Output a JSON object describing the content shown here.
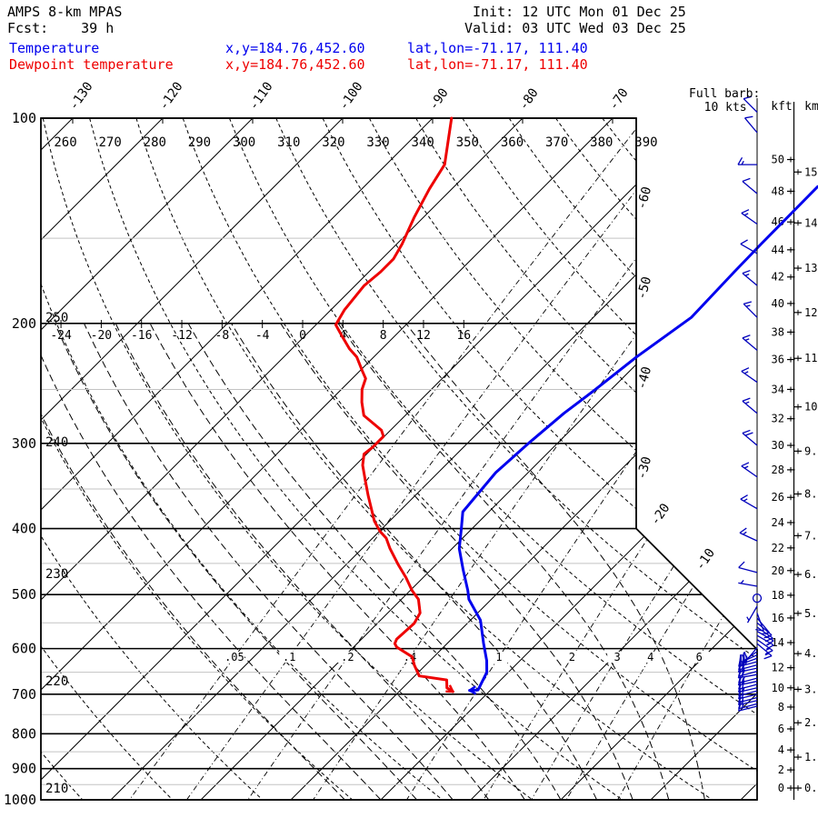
{
  "header": {
    "model": "AMPS 8-km MPAS",
    "fcst_label": "Fcst:",
    "fcst_value": "39 h",
    "init_label": "Init:",
    "init_value": "12 UTC Mon 01 Dec 25",
    "valid_label": "Valid:",
    "valid_value": "03 UTC Wed 03 Dec 25"
  },
  "legend": {
    "temperature": {
      "label": "Temperature",
      "xy": "x,y=184.76,452.60",
      "latlon": "lat,lon=-71.17, 111.40"
    },
    "dewpoint": {
      "label": "Dewpoint temperature",
      "xy": "x,y=184.76,452.60",
      "latlon": "lat,lon=-71.17, 111.40"
    }
  },
  "barb_legend": {
    "line1": "Full barb:",
    "line2": "10 kts"
  },
  "colors": {
    "temperature": "#0000ee",
    "dewpoint": "#ee0000",
    "barbs": "#0000bb",
    "minor_line": "#c3c3c3",
    "major_line": "#000000"
  },
  "axes": {
    "pressure_unit": "hPa",
    "pressure_major_ticks": [
      100,
      200,
      300,
      400,
      500,
      600,
      700,
      800,
      900,
      1000
    ],
    "pressure_minor_ticks": [
      150,
      250,
      350,
      450,
      550,
      650,
      750,
      850,
      950
    ],
    "top_isotherm_labels": [
      -130,
      -120,
      -110,
      -100,
      -90,
      -80,
      -70
    ],
    "edge_isotherm_labels": [
      -60,
      -50,
      -40,
      -30,
      -20,
      -10
    ],
    "dry_adiabat_values": [
      210,
      220,
      230,
      240,
      250,
      260,
      270,
      280,
      290,
      300,
      310,
      320,
      330,
      340,
      350,
      360,
      370,
      380,
      390
    ],
    "dry_adiabat_top_labels": [
      260,
      270,
      280,
      290,
      300,
      310,
      320,
      330,
      340,
      350,
      360,
      370,
      380,
      390
    ],
    "dry_adiabat_left_labels": [
      250,
      240,
      230,
      220,
      210
    ],
    "moist_adiabat_labels": [
      -24,
      -20,
      -16,
      -12,
      -8,
      -4,
      0,
      4,
      8,
      12,
      16
    ],
    "mixing_ratio_values": [
      0.05,
      0.1,
      0.2,
      0.4,
      1,
      2,
      3,
      4,
      6
    ],
    "mixing_ratio_labels": [
      ".05",
      ".1",
      ".2",
      ".4",
      "1",
      "2",
      "3",
      "4",
      "6"
    ],
    "height_kft_label": "kft",
    "height_km_label": "km",
    "kft_max": 50,
    "kft_label_step": 2,
    "km_max": 15,
    "kft_pressure_anchors": [
      [
        0,
        961
      ],
      [
        2,
        904
      ],
      [
        4,
        845
      ],
      [
        6,
        787
      ],
      [
        8,
        731
      ],
      [
        10,
        685
      ],
      [
        12,
        640
      ],
      [
        14,
        588
      ],
      [
        16,
        541
      ],
      [
        18,
        501
      ],
      [
        20,
        461
      ],
      [
        22,
        427
      ],
      [
        24,
        392
      ],
      [
        26,
        360
      ],
      [
        28,
        328
      ],
      [
        30,
        302
      ],
      [
        32,
        276
      ],
      [
        34,
        250
      ],
      [
        36,
        226
      ],
      [
        38,
        206
      ],
      [
        40,
        187
      ],
      [
        42,
        171
      ],
      [
        44,
        156
      ],
      [
        46,
        142
      ],
      [
        48,
        128
      ],
      [
        50,
        115
      ]
    ]
  },
  "chart_data": {
    "type": "skewt_log_p_sounding",
    "title": "AMPS 8-km MPAS skew-T sounding",
    "pressure_unit": "hPa",
    "temperature_unit": "degC",
    "wind_unit": "kts",
    "temperature_series": [
      [
        126,
        -39.6
      ],
      [
        153,
        -39.5
      ],
      [
        168,
        -39.4
      ],
      [
        196,
        -39.1
      ],
      [
        224,
        -40.8
      ],
      [
        251,
        -41.8
      ],
      [
        271,
        -42.6
      ],
      [
        299,
        -43.2
      ],
      [
        331,
        -43.6
      ],
      [
        378,
        -42.9
      ],
      [
        400,
        -41.2
      ],
      [
        428,
        -39.2
      ],
      [
        460,
        -36.4
      ],
      [
        493,
        -33.6
      ],
      [
        508,
        -32.5
      ],
      [
        545,
        -28.9
      ],
      [
        589,
        -26.0
      ],
      [
        625,
        -23.7
      ],
      [
        650,
        -22.4
      ],
      [
        690,
        -21.4
      ],
      [
        691,
        -22.3
      ]
    ],
    "dewpoint_series": [
      [
        100,
        -87.9
      ],
      [
        117,
        -83.5
      ],
      [
        127,
        -82.5
      ],
      [
        140,
        -81.0
      ],
      [
        153,
        -79.4
      ],
      [
        161,
        -78.7
      ],
      [
        168,
        -78.7
      ],
      [
        176,
        -79.0
      ],
      [
        191,
        -78.5
      ],
      [
        201,
        -77.8
      ],
      [
        209,
        -75.8
      ],
      [
        218,
        -73.6
      ],
      [
        224,
        -71.9
      ],
      [
        235,
        -69.7
      ],
      [
        241,
        -68.5
      ],
      [
        250,
        -67.7
      ],
      [
        261,
        -66.3
      ],
      [
        273,
        -64.6
      ],
      [
        287,
        -61.0
      ],
      [
        293,
        -60.1
      ],
      [
        304,
        -60.1
      ],
      [
        311,
        -60.3
      ],
      [
        323,
        -59.2
      ],
      [
        341,
        -57.1
      ],
      [
        358,
        -55.2
      ],
      [
        390,
        -51.7
      ],
      [
        404,
        -49.9
      ],
      [
        413,
        -48.5
      ],
      [
        428,
        -46.9
      ],
      [
        451,
        -44.3
      ],
      [
        472,
        -41.9
      ],
      [
        493,
        -39.8
      ],
      [
        508,
        -38.1
      ],
      [
        532,
        -36.4
      ],
      [
        551,
        -35.9
      ],
      [
        581,
        -36.1
      ],
      [
        590,
        -35.8
      ],
      [
        597,
        -35.2
      ],
      [
        617,
        -32.4
      ],
      [
        635,
        -31.2
      ],
      [
        658,
        -29.5
      ],
      [
        667,
        -26.0
      ],
      [
        685,
        -25.1
      ],
      [
        694,
        -24.0
      ]
    ],
    "wind_barbs": [
      [
        98,
        10,
        315
      ],
      [
        105,
        10,
        320
      ],
      [
        117,
        15,
        270
      ],
      [
        129,
        10,
        310
      ],
      [
        143,
        15,
        305
      ],
      [
        158,
        10,
        300
      ],
      [
        176,
        15,
        310
      ],
      [
        196,
        15,
        315
      ],
      [
        219,
        15,
        310
      ],
      [
        244,
        15,
        305
      ],
      [
        271,
        15,
        310
      ],
      [
        302,
        20,
        310
      ],
      [
        336,
        15,
        305
      ],
      [
        374,
        15,
        300
      ],
      [
        417,
        15,
        295
      ],
      [
        464,
        10,
        285
      ],
      [
        486,
        5,
        280
      ],
      [
        506,
        0,
        0
      ],
      [
        520,
        5,
        210
      ],
      [
        532,
        10,
        160
      ],
      [
        541,
        10,
        140
      ],
      [
        550,
        15,
        130
      ],
      [
        558,
        15,
        125
      ],
      [
        566,
        10,
        120
      ],
      [
        574,
        15,
        120
      ],
      [
        582,
        15,
        125
      ],
      [
        590,
        15,
        130
      ],
      [
        598,
        20,
        220
      ],
      [
        606,
        20,
        235
      ],
      [
        613,
        25,
        245
      ],
      [
        620,
        20,
        250
      ],
      [
        627,
        25,
        255
      ],
      [
        634,
        20,
        255
      ],
      [
        641,
        20,
        258
      ],
      [
        648,
        20,
        255
      ],
      [
        655,
        20,
        260
      ],
      [
        663,
        15,
        255
      ],
      [
        670,
        20,
        258
      ],
      [
        677,
        20,
        255
      ],
      [
        685,
        15,
        257
      ],
      [
        692,
        20,
        255
      ],
      [
        700,
        15,
        256
      ],
      [
        708,
        15,
        255
      ],
      [
        715,
        15,
        257
      ],
      [
        723,
        15,
        255
      ],
      [
        729,
        10,
        256
      ]
    ],
    "calm_level_p": 506
  }
}
